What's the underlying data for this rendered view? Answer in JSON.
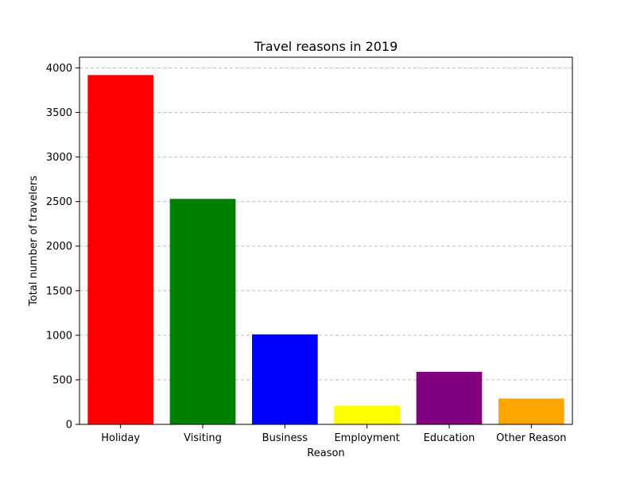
{
  "chart_data": {
    "type": "bar",
    "title": "Travel reasons in 2019",
    "xlabel": "Reason",
    "ylabel": "Total number of travelers",
    "categories": [
      "Holiday",
      "Visiting",
      "Business",
      "Employment",
      "Education",
      "Other Reason"
    ],
    "values": [
      3920,
      2530,
      1010,
      210,
      590,
      290
    ],
    "colors": [
      "#ff0000",
      "#008000",
      "#0000ff",
      "#ffff00",
      "#800080",
      "#ffa500"
    ],
    "ylim": [
      0,
      4120
    ],
    "yticks": [
      0,
      500,
      1000,
      1500,
      2000,
      2500,
      3000,
      3500,
      4000
    ],
    "ytick_labels": [
      "0",
      "500",
      "1000",
      "1500",
      "2000",
      "2500",
      "3000",
      "3500",
      "4000"
    ],
    "grid": "y-dashed",
    "grid_color": "#c0c0c0",
    "legend": "none"
  }
}
